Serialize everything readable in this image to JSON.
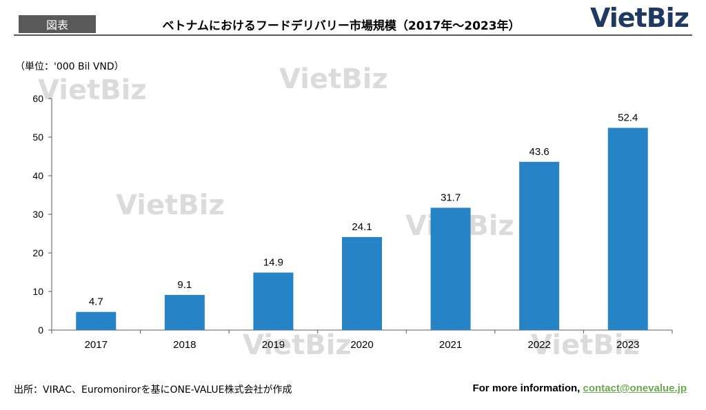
{
  "header": {
    "tag": "図表",
    "title": "ベトナムにおけるフードデリバリー市場規模（2017年～2023年）",
    "logo": "VietBiz"
  },
  "unit_label": "（単位：'000 Bil VND）",
  "watermark": "VietBiz",
  "footer": {
    "source": "出所：VIRAC、Euromonirorを基にONE-VALUE株式会社が作成",
    "more_info": "For more information, ",
    "contact_email": "contact@onevalue.jp"
  },
  "colors": {
    "bar": "#2683c6",
    "logo": "#1f3864",
    "link": "#6aa84f"
  },
  "chart_data": {
    "type": "bar",
    "categories": [
      "2017",
      "2018",
      "2019",
      "2020",
      "2021",
      "2022",
      "2023"
    ],
    "values": [
      4.7,
      9.1,
      14.9,
      24.1,
      31.7,
      43.6,
      52.4
    ],
    "ylim": [
      0,
      60
    ],
    "yticks": [
      0,
      10,
      20,
      30,
      40,
      50,
      60
    ],
    "grid": false
  }
}
